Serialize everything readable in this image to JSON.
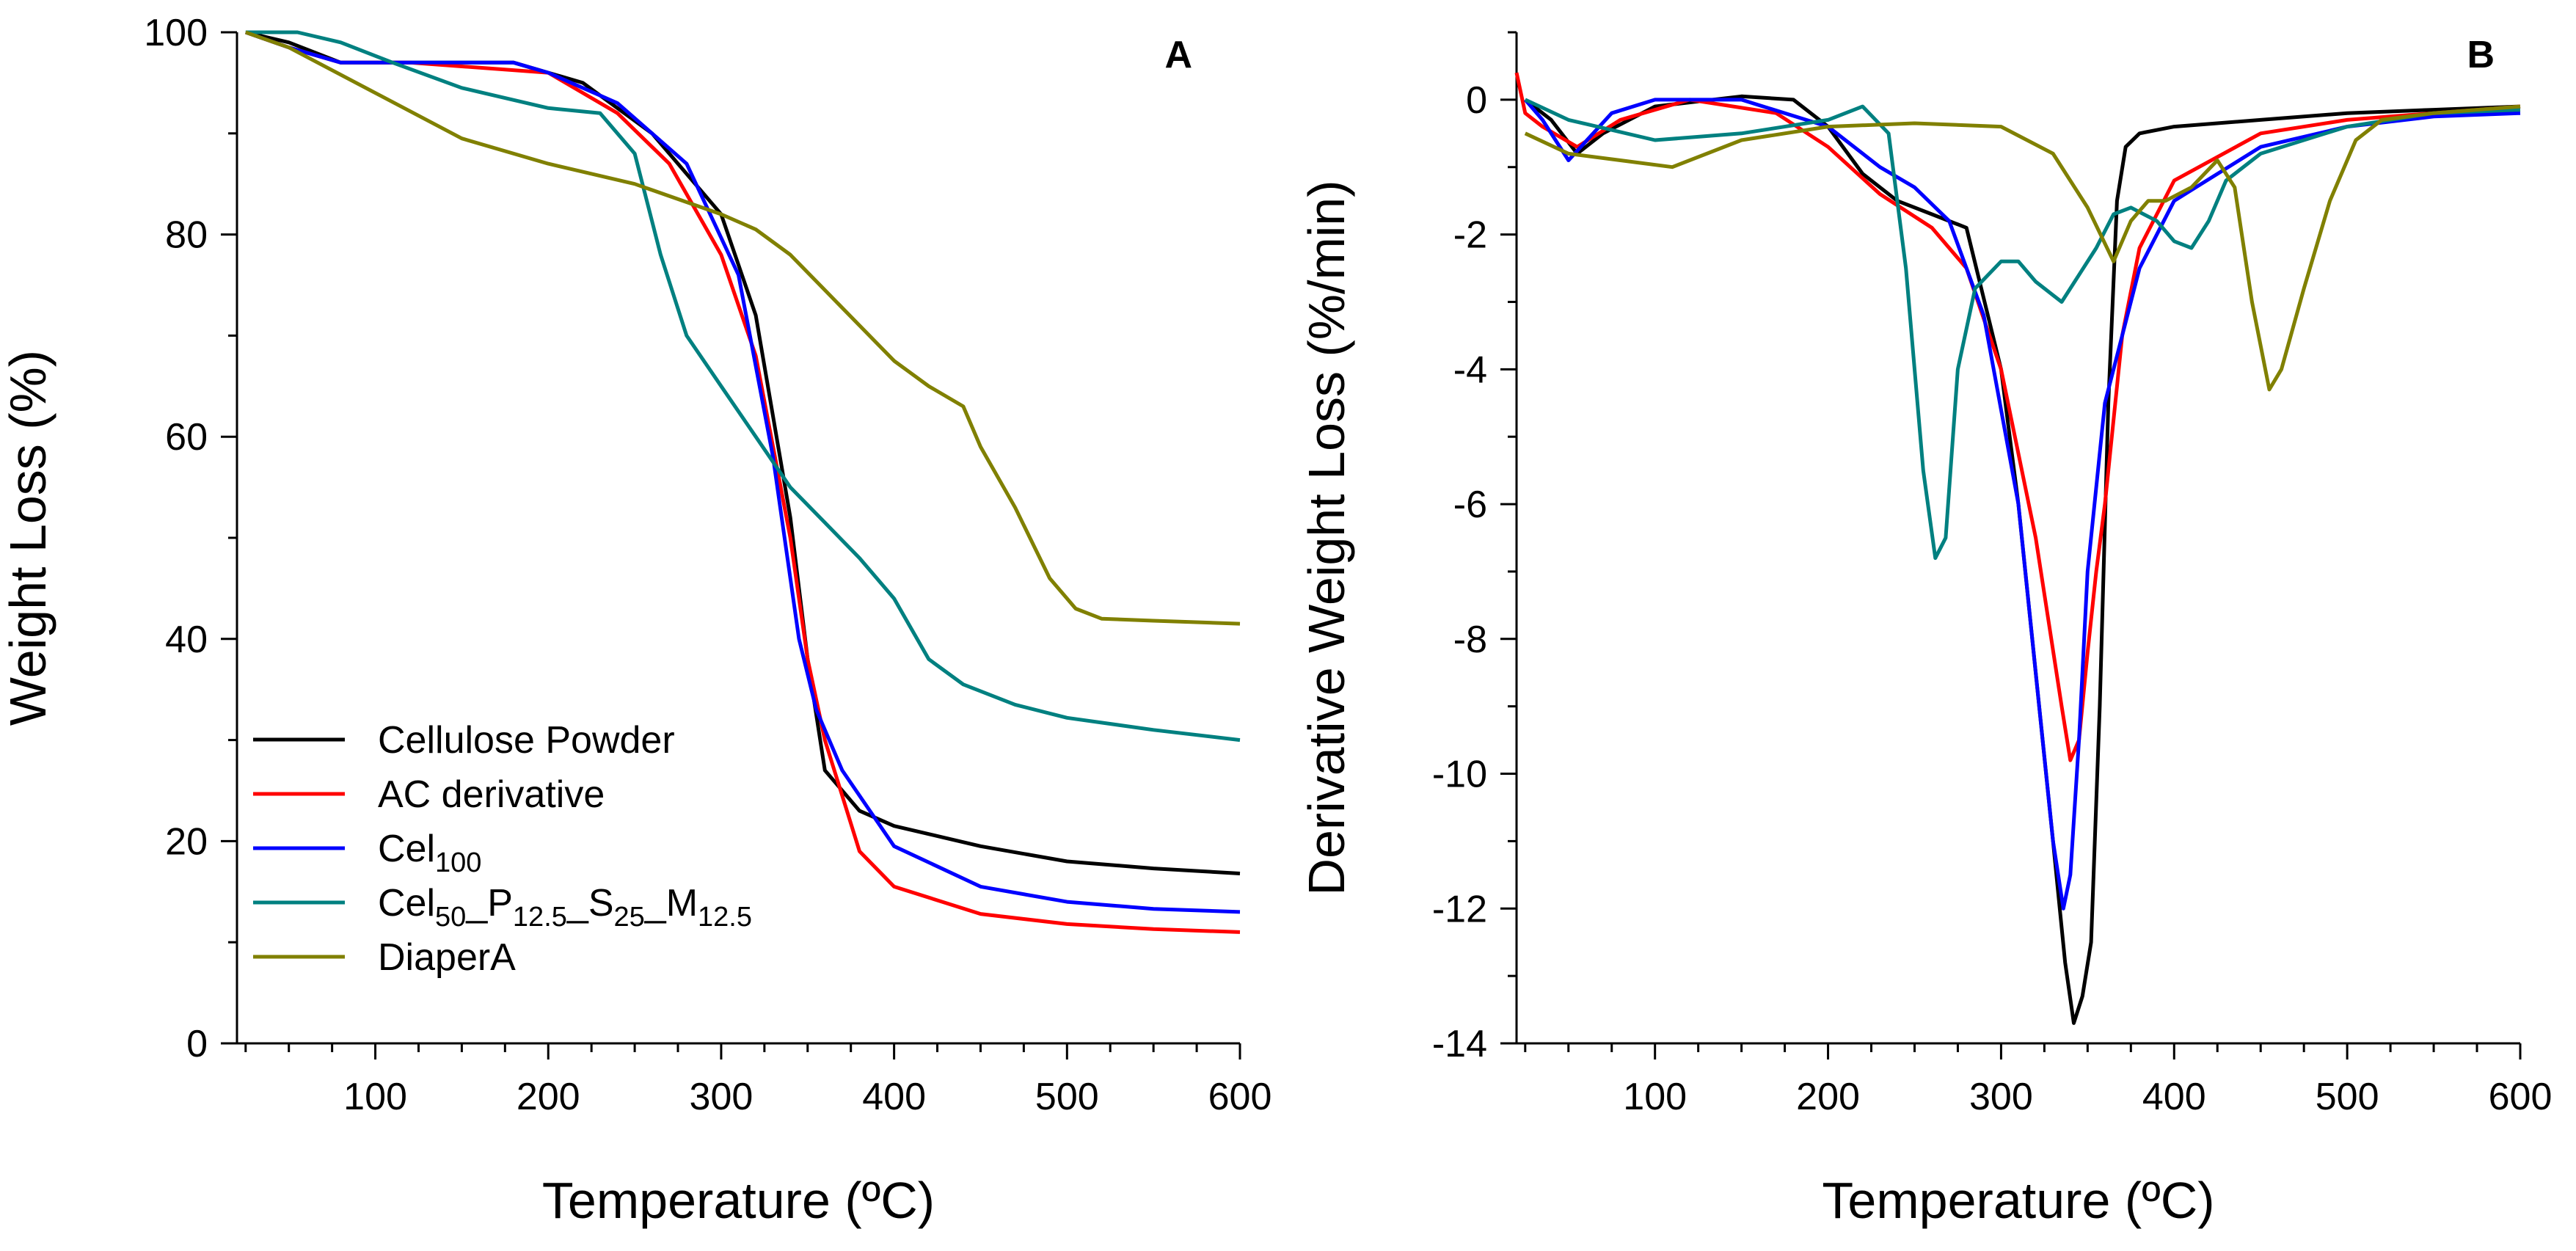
{
  "chart_data": [
    {
      "panel": "A",
      "type": "line",
      "title": "",
      "xlabel": "Temperature (ºC)",
      "ylabel": "Weight Loss (%)",
      "xlim": [
        20,
        600
      ],
      "ylim": [
        0,
        100
      ],
      "x_ticks": [
        100,
        200,
        300,
        400,
        500,
        600
      ],
      "y_ticks": [
        0,
        20,
        40,
        60,
        80,
        100
      ],
      "x_minor_step": 25,
      "y_minor_step": 10,
      "series": [
        {
          "name": "Cellulose Powder",
          "color": "#000000",
          "x": [
            25,
            50,
            80,
            120,
            180,
            220,
            260,
            300,
            320,
            340,
            350,
            360,
            380,
            400,
            450,
            500,
            550,
            600
          ],
          "y": [
            100,
            99,
            97,
            97,
            97,
            95,
            90,
            82,
            72,
            52,
            38,
            27,
            23,
            21.5,
            19.5,
            18,
            17.3,
            16.8
          ]
        },
        {
          "name": "AC derivative",
          "color": "#ff0000",
          "x": [
            25,
            50,
            80,
            120,
            200,
            240,
            270,
            300,
            320,
            340,
            350,
            360,
            380,
            400,
            450,
            500,
            550,
            600
          ],
          "y": [
            100,
            98.5,
            97,
            97,
            96,
            92,
            87,
            78,
            68,
            50,
            38,
            30,
            19,
            15.5,
            12.8,
            11.8,
            11.3,
            11
          ]
        },
        {
          "name": "Cel100",
          "color": "#0000ff",
          "x": [
            25,
            50,
            80,
            120,
            180,
            200,
            240,
            280,
            310,
            330,
            345,
            355,
            370,
            400,
            450,
            500,
            550,
            600
          ],
          "y": [
            100,
            98.5,
            97,
            97,
            97,
            96,
            93,
            87,
            76,
            58,
            40,
            33,
            27,
            19.5,
            15.5,
            14,
            13.3,
            13
          ]
        },
        {
          "name": "Cel50_P12.5_S25_M12.5",
          "color": "#008080",
          "x": [
            25,
            55,
            80,
            110,
            150,
            200,
            230,
            250,
            265,
            280,
            300,
            320,
            340,
            360,
            380,
            400,
            420,
            440,
            470,
            500,
            550,
            600
          ],
          "y": [
            100,
            100,
            99,
            97,
            94.5,
            92.5,
            92,
            88,
            78,
            70,
            65,
            60,
            55,
            51.5,
            48,
            44,
            38,
            35.5,
            33.5,
            32.2,
            31,
            30
          ]
        },
        {
          "name": "DiaperA",
          "color": "#808000",
          "x": [
            25,
            50,
            100,
            150,
            200,
            250,
            300,
            320,
            340,
            360,
            380,
            400,
            420,
            440,
            450,
            470,
            490,
            505,
            520,
            550,
            600
          ],
          "y": [
            100,
            98.5,
            94,
            89.5,
            87,
            85,
            82,
            80.5,
            78,
            74.5,
            71,
            67.5,
            65,
            63,
            59,
            53,
            46,
            43,
            42,
            41.8,
            41.5
          ]
        }
      ],
      "legend": [
        "Cellulose Powder",
        "AC derivative",
        "Cel100",
        "Cel50_P12.5_S25_M12.5",
        "DiaperA"
      ],
      "legend_position": "bottom-left"
    },
    {
      "panel": "B",
      "type": "line",
      "title": "",
      "xlabel": "Temperature (ºC)",
      "ylabel": "Derivative Weight Loss (%/min)",
      "xlim": [
        20,
        600
      ],
      "ylim": [
        -14,
        1
      ],
      "x_ticks": [
        100,
        200,
        300,
        400,
        500,
        600
      ],
      "y_ticks": [
        -14,
        -12,
        -10,
        -8,
        -6,
        -4,
        -2,
        0
      ],
      "x_minor_step": 25,
      "y_minor_step": 1,
      "series": [
        {
          "name": "Cellulose Powder",
          "color": "#000000",
          "x": [
            25,
            40,
            55,
            70,
            100,
            150,
            180,
            200,
            220,
            240,
            260,
            280,
            300,
            310,
            320,
            330,
            337,
            342,
            347,
            352,
            357,
            362,
            367,
            372,
            380,
            400,
            450,
            500,
            550,
            600
          ],
          "y": [
            0,
            -0.3,
            -0.8,
            -0.5,
            -0.1,
            0.05,
            0,
            -0.4,
            -1.1,
            -1.5,
            -1.7,
            -1.9,
            -4,
            -6,
            -8.5,
            -11,
            -12.8,
            -13.7,
            -13.3,
            -12.5,
            -9,
            -4.5,
            -1.5,
            -0.7,
            -0.5,
            -0.4,
            -0.3,
            -0.2,
            -0.15,
            -0.1
          ]
        },
        {
          "name": "AC derivative",
          "color": "#ff0000",
          "x": [
            20,
            25,
            35,
            55,
            80,
            120,
            170,
            200,
            230,
            260,
            280,
            300,
            320,
            335,
            340,
            345,
            350,
            355,
            360,
            370,
            380,
            400,
            450,
            500,
            550,
            600
          ],
          "y": [
            0.4,
            -0.2,
            -0.4,
            -0.7,
            -0.3,
            0,
            -0.2,
            -0.7,
            -1.4,
            -1.9,
            -2.5,
            -4,
            -6.5,
            -9,
            -9.8,
            -9.5,
            -8.2,
            -7,
            -6,
            -3.5,
            -2.2,
            -1.2,
            -0.5,
            -0.3,
            -0.2,
            -0.1
          ]
        },
        {
          "name": "Cel100",
          "color": "#0000ff",
          "x": [
            25,
            35,
            50,
            75,
            100,
            150,
            200,
            230,
            250,
            270,
            290,
            310,
            320,
            330,
            336,
            340,
            345,
            350,
            360,
            370,
            380,
            400,
            450,
            500,
            550,
            600
          ],
          "y": [
            0,
            -0.3,
            -0.9,
            -0.2,
            0,
            0,
            -0.4,
            -1,
            -1.3,
            -1.8,
            -3.2,
            -6,
            -8.5,
            -11,
            -12,
            -11.5,
            -9.5,
            -7,
            -4.5,
            -3.5,
            -2.5,
            -1.5,
            -0.7,
            -0.4,
            -0.25,
            -0.2
          ]
        },
        {
          "name": "Cel50_P12.5_S25_M12.5",
          "color": "#008080",
          "x": [
            25,
            50,
            100,
            150,
            200,
            220,
            235,
            245,
            255,
            262,
            268,
            275,
            285,
            300,
            310,
            320,
            335,
            345,
            355,
            365,
            375,
            390,
            400,
            410,
            420,
            430,
            450,
            500,
            550,
            600
          ],
          "y": [
            0,
            -0.3,
            -0.6,
            -0.5,
            -0.3,
            -0.1,
            -0.5,
            -2.5,
            -5.5,
            -6.8,
            -6.5,
            -4,
            -2.8,
            -2.4,
            -2.4,
            -2.7,
            -3,
            -2.6,
            -2.2,
            -1.7,
            -1.6,
            -1.8,
            -2.1,
            -2.2,
            -1.8,
            -1.2,
            -0.8,
            -0.4,
            -0.2,
            -0.15
          ]
        },
        {
          "name": "DiaperA",
          "color": "#808000",
          "x": [
            25,
            50,
            80,
            110,
            150,
            200,
            250,
            300,
            330,
            350,
            365,
            375,
            385,
            395,
            410,
            425,
            435,
            445,
            455,
            462,
            475,
            490,
            505,
            520,
            550,
            600
          ],
          "y": [
            -0.5,
            -0.8,
            -0.9,
            -1,
            -0.6,
            -0.4,
            -0.35,
            -0.4,
            -0.8,
            -1.6,
            -2.4,
            -1.8,
            -1.5,
            -1.5,
            -1.3,
            -0.9,
            -1.3,
            -3,
            -4.3,
            -4,
            -2.8,
            -1.5,
            -0.6,
            -0.3,
            -0.2,
            -0.1
          ]
        }
      ]
    }
  ]
}
